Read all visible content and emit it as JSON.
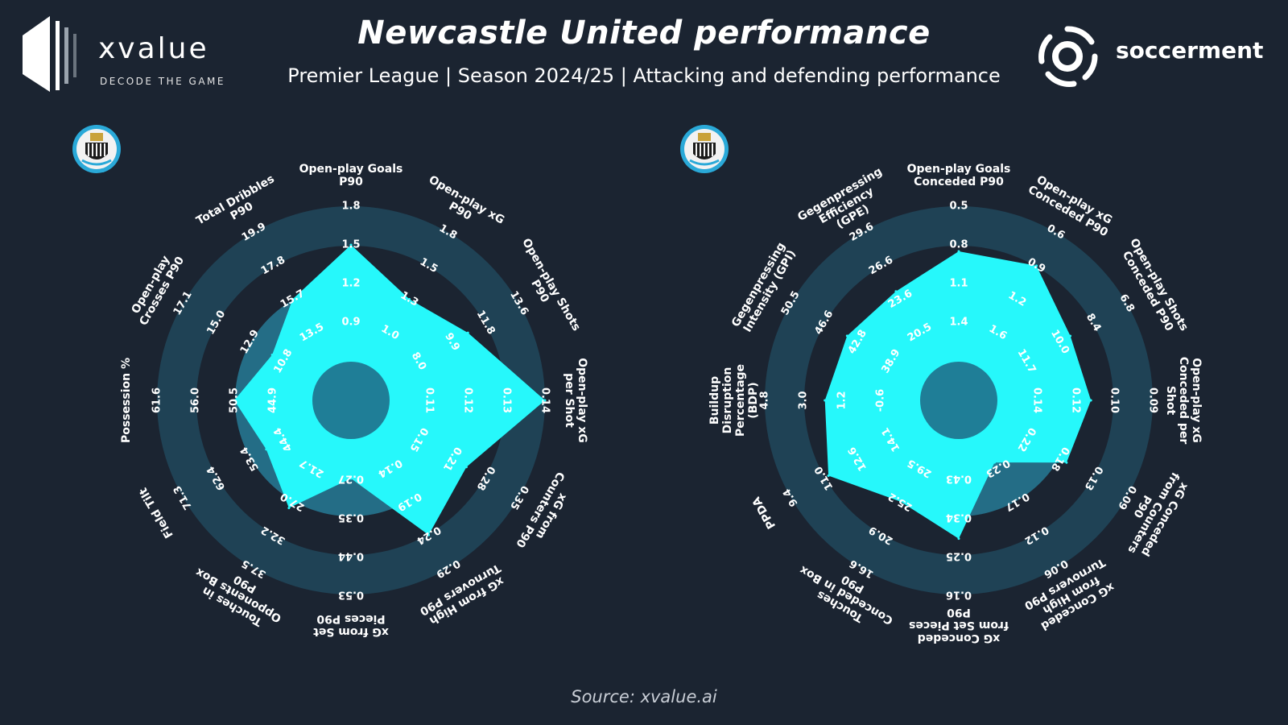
{
  "header": {
    "title": "Newcastle United performance",
    "subtitle": "Premier League | Season 2024/25 | Attacking and defending performance"
  },
  "branding": {
    "left_wordmark": "xvalue",
    "left_tagline": "DECODE THE GAME",
    "right_wordmark": "soccerment"
  },
  "footer": {
    "source": "Source: xvalue.ai"
  },
  "colors": {
    "background": "#1b2431",
    "band_outer": "#1f4255",
    "band_middle": "#246d86",
    "band_inner": "#1f7e97",
    "fill": "#26f8fb"
  },
  "chart_data": [
    {
      "type": "radar",
      "title": "",
      "legend": "none",
      "axes": [
        {
          "label": "Open-play Goals\nP90",
          "ticks": [
            "0.9",
            "1.2",
            "1.5",
            "1.8"
          ],
          "value": 1.5
        },
        {
          "label": "Open-play xG\nP90",
          "ticks": [
            "1.0",
            "1.3",
            "1.5",
            "1.8"
          ],
          "value": 1.3
        },
        {
          "label": "Open-play Shots\nP90",
          "ticks": [
            "8.0",
            "9.9",
            "11.8",
            "13.6"
          ],
          "value": 10.8
        },
        {
          "label": "Open-play xG\nper Shot",
          "ticks": [
            "0.11",
            "0.12",
            "0.13",
            "0.14"
          ],
          "value": 0.14
        },
        {
          "label": "xG from\nCounters P90",
          "ticks": [
            "0.15",
            "0.21",
            "0.28",
            "0.35"
          ],
          "value": 0.24
        },
        {
          "label": "xG from High\nTurnovers P90",
          "ticks": [
            "0.14",
            "0.19",
            "0.24",
            "0.29"
          ],
          "value": 0.24
        },
        {
          "label": "xG from Set\nPieces P90",
          "ticks": [
            "0.27",
            "0.35",
            "0.44",
            "0.53"
          ],
          "value": 0.27
        },
        {
          "label": "Touches in\nOpponents Box\nP90",
          "ticks": [
            "21.7",
            "27.0",
            "32.2",
            "37.5"
          ],
          "value": 28.0
        },
        {
          "label": "Field Tilt",
          "ticks": [
            "44.4",
            "53.4",
            "62.4",
            "71.3"
          ],
          "value": 49.0
        },
        {
          "label": "Possession %",
          "ticks": [
            "44.9",
            "50.5",
            "56.0",
            "61.6"
          ],
          "value": 50.5
        },
        {
          "label": "Open-play\nCrosses P90",
          "ticks": [
            "10.8",
            "12.9",
            "15.0",
            "17.1"
          ],
          "value": 11.5
        },
        {
          "label": "Total Dribbles\nP90",
          "ticks": [
            "13.5",
            "15.7",
            "17.8",
            "19.9"
          ],
          "value": 15.7
        }
      ]
    },
    {
      "type": "radar",
      "title": "",
      "legend": "none",
      "axes": [
        {
          "label": "Open-play Goals\nConceded P90",
          "ticks": [
            "1.4",
            "1.1",
            "0.8",
            "0.5"
          ],
          "value": 0.85
        },
        {
          "label": "Open-play xG\nConceded P90",
          "ticks": [
            "1.6",
            "1.2",
            "0.9",
            "0.6"
          ],
          "value": 0.9
        },
        {
          "label": "Open-play Shots\nConceded P90",
          "ticks": [
            "11.7",
            "10.0",
            "8.4",
            "6.8"
          ],
          "value": 9.5
        },
        {
          "label": "Open-play xG\nConceded per\nShot",
          "ticks": [
            "0.14",
            "0.12",
            "0.10",
            "0.09"
          ],
          "value": 0.112
        },
        {
          "label": "xG Conceded\nfrom Counters\nP90",
          "ticks": [
            "0.22",
            "0.18",
            "0.13",
            "0.09"
          ],
          "value": 0.17
        },
        {
          "label": "xG Conceded\nfrom High\nTurnovers P90",
          "ticks": [
            "0.23",
            "0.17",
            "0.12",
            "0.06"
          ],
          "value": 0.24
        },
        {
          "label": "xG Conceded\nfrom Set Pieces\nP90",
          "ticks": [
            "0.43",
            "0.34",
            "0.25",
            "0.16"
          ],
          "value": 0.29
        },
        {
          "label": "Touches\nConceded in Box\nP90",
          "ticks": [
            "29.5",
            "25.2",
            "20.9",
            "16.6"
          ],
          "value": 25.2
        },
        {
          "label": "PPDA",
          "ticks": [
            "14.1",
            "12.6",
            "11.0",
            "9.4"
          ],
          "value": 11.2
        },
        {
          "label": "Buildup\nDisruption\nPercentage\n(BDP)",
          "ticks": [
            "-0.6",
            "1.2",
            "3.0",
            "4.8"
          ],
          "value": 2.0
        },
        {
          "label": "Gegenpressing\nIntensity (GPI)",
          "ticks": [
            "38.9",
            "42.8",
            "46.6",
            "50.5"
          ],
          "value": 44.0
        },
        {
          "label": "Gegenpressing\nEfficiency\n(GPE)",
          "ticks": [
            "20.5",
            "23.6",
            "26.6",
            "29.6"
          ],
          "value": 24.3
        }
      ]
    }
  ]
}
